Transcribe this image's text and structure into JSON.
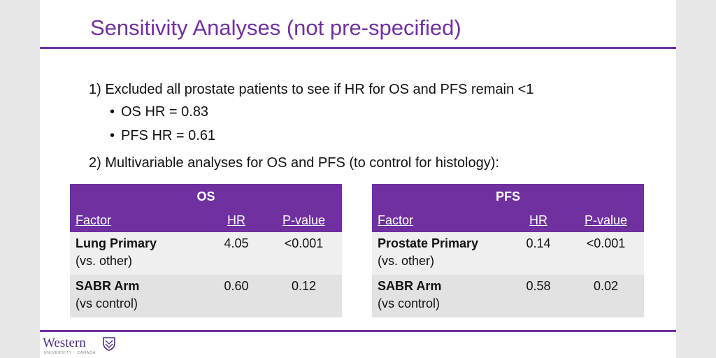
{
  "title": "Sensitivity Analyses (not pre-specified)",
  "item1": "1) Excluded all prostate patients to see if HR for OS and PFS remain <1",
  "item1_bullets": [
    "OS HR = 0.83",
    "PFS HR = 0.61"
  ],
  "item2": "2) Multivariable analyses for OS and PFS (to control for histology):",
  "tables": [
    {
      "title": "OS",
      "headers": [
        "Factor",
        "HR",
        "P-value"
      ],
      "rows": [
        {
          "factor": "Lung Primary",
          "sub": "(vs. other)",
          "hr": "4.05",
          "p": "<0.001"
        },
        {
          "factor": "SABR Arm",
          "sub": "(vs control)",
          "hr": "0.60",
          "p": "0.12"
        }
      ]
    },
    {
      "title": "PFS",
      "headers": [
        "Factor",
        "HR",
        "P-value"
      ],
      "rows": [
        {
          "factor": "Prostate Primary",
          "sub": "(vs. other)",
          "hr": "0.14",
          "p": "<0.001"
        },
        {
          "factor": "SABR Arm",
          "sub": "(vs control)",
          "hr": "0.58",
          "p": "0.02"
        }
      ]
    }
  ],
  "logo": {
    "name": "Western",
    "subtitle": "UNIVERSITY · CANADA",
    "crest_color": "#4b2e83"
  },
  "colors": {
    "accent": "#7030a0",
    "background": "#ffffff",
    "page": "#e7e7e7"
  }
}
